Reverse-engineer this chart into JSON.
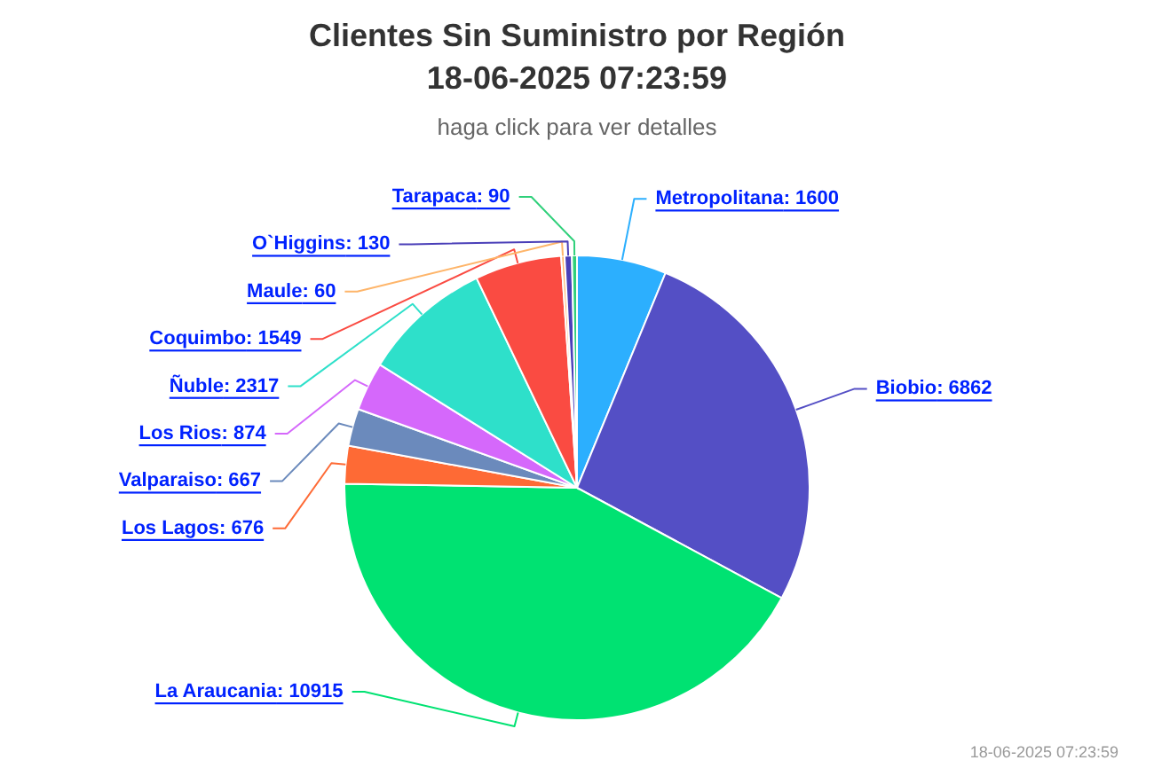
{
  "chart_data": {
    "type": "pie",
    "title": "Clientes Sin Suministro por Región\n18-06-2025 07:23:59",
    "subtitle": "haga click para ver detalles",
    "categories": [
      "Metropolitana",
      "Biobio",
      "La Araucania",
      "Los Lagos",
      "Valparaiso",
      "Los Rios",
      "Ñuble",
      "Coquimbo",
      "Maule",
      "O`Higgins",
      "Tarapaca"
    ],
    "values": [
      1600,
      6862,
      10915,
      676,
      667,
      874,
      2317,
      1549,
      60,
      130,
      90
    ],
    "value_labels": [
      ": 1600",
      ": 6862",
      ": 10915",
      ": 676",
      ": 667",
      ": 874",
      ": 2317",
      ": 1549",
      ": 60",
      ": 130",
      ": 90"
    ],
    "colors": [
      "#2caffe",
      "#544fc5",
      "#00e272",
      "#fe6a35",
      "#6b8abc",
      "#d568fb",
      "#2ee0ca",
      "#fa4b42",
      "#feb56a",
      "#4a3fb8",
      "#2fd07a"
    ],
    "annotations": [
      "18-06-2025 07:23:59"
    ]
  }
}
